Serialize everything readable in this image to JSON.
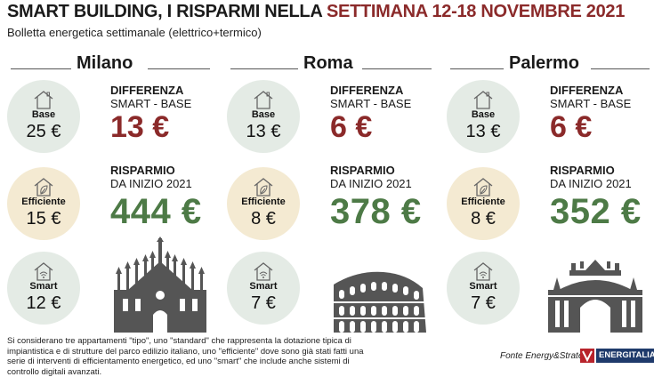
{
  "header": {
    "title_part1": "SMART BUILDING, I RISPARMI NELLA ",
    "title_part2": "SETTIMANA 12-18 NOVEMBRE 2021",
    "subtitle": "Bolletta energetica settimanale (elettrico+termico)"
  },
  "labels": {
    "diff_title": "DIFFERENZA",
    "diff_sub": "SMART - BASE",
    "save_title": "RISPARMIO",
    "save_sub": "DA INIZIO 2021",
    "base": "Base",
    "efficiente": "Efficiente",
    "smart": "Smart"
  },
  "cities": [
    {
      "name": "Milano",
      "base": "25 €",
      "efficiente": "15 €",
      "smart": "12 €",
      "diff": "13 €",
      "saving": "444 €",
      "monument": "duomo-icon"
    },
    {
      "name": "Roma",
      "base": "13 €",
      "efficiente": "8 €",
      "smart": "7 €",
      "diff": "6 €",
      "saving": "378 €",
      "monument": "colosseum-icon"
    },
    {
      "name": "Palermo",
      "base": "13 €",
      "efficiente": "8 €",
      "smart": "7 €",
      "diff": "6 €",
      "saving": "352 €",
      "monument": "teatro-massimo-icon"
    }
  ],
  "footer": {
    "note": "Si considerano tre appartamenti \"tipo\", uno \"standard\" che rappresenta la dotazione tipica di impiantistica e di strutture del parco edilizio italiano, uno \"efficiente\" dove sono già stati fatti una serie di interventi di efficientamento energetico, ed uno \"smart\" che include anche sistemi di controllo digitali avanzati.",
    "source": "Fonte Energy&Strategy",
    "brand": "ENERGITALIA"
  },
  "colors": {
    "accent_red": "#8b2a2a",
    "accent_green": "#4d7a46",
    "circle_green": "#e4ebe5",
    "circle_beige": "#f4ead2"
  }
}
